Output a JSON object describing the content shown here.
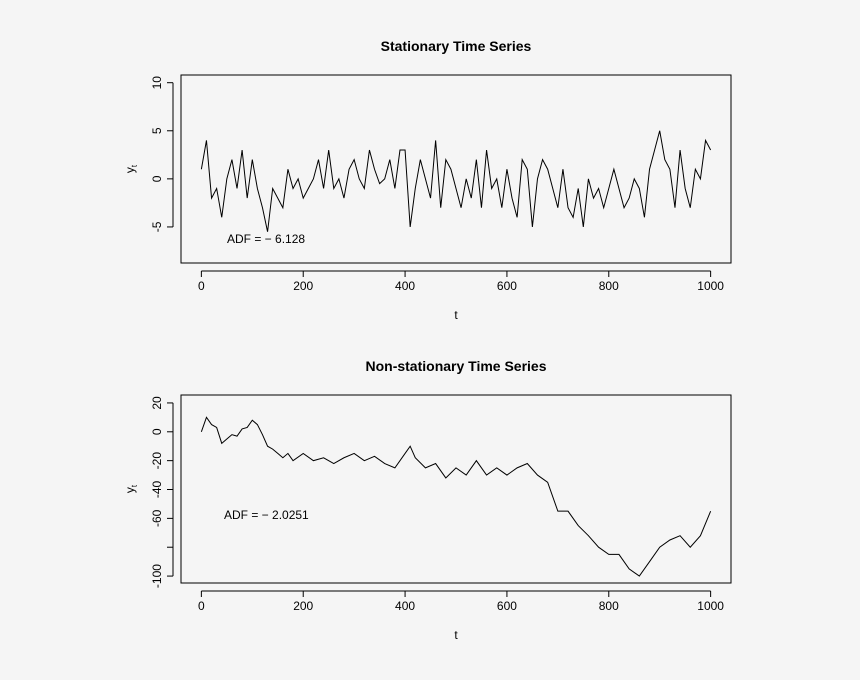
{
  "chart_data": [
    {
      "type": "line",
      "title": "Stationary Time Series",
      "xlabel": "t",
      "ylabel": "y",
      "ylabel_subscript": "t",
      "annotation": "ADF = − 6.128",
      "color": "#000000",
      "xlim": [
        -40,
        1040
      ],
      "ylim": [
        -8.75,
        10.8
      ],
      "xticks": [
        0,
        200,
        400,
        600,
        800,
        1000
      ],
      "yticks": [
        -5,
        0,
        5,
        10
      ],
      "x": [
        0,
        10,
        20,
        30,
        40,
        50,
        60,
        70,
        80,
        90,
        100,
        110,
        120,
        130,
        140,
        150,
        160,
        170,
        180,
        190,
        200,
        210,
        220,
        230,
        240,
        250,
        260,
        270,
        280,
        290,
        300,
        310,
        320,
        330,
        340,
        350,
        360,
        370,
        380,
        390,
        400,
        410,
        420,
        430,
        440,
        450,
        460,
        470,
        480,
        490,
        500,
        510,
        520,
        530,
        540,
        550,
        560,
        570,
        580,
        590,
        600,
        610,
        620,
        630,
        640,
        650,
        660,
        670,
        680,
        690,
        700,
        710,
        720,
        730,
        740,
        750,
        760,
        770,
        780,
        790,
        800,
        810,
        820,
        830,
        840,
        850,
        860,
        870,
        880,
        890,
        900,
        910,
        920,
        930,
        940,
        950,
        960,
        970,
        980,
        990,
        1000
      ],
      "values": [
        1,
        4,
        -2,
        -1,
        -4,
        0,
        2,
        -1,
        3,
        -2,
        2,
        -1,
        -3,
        -5.5,
        -1,
        -2,
        -3,
        1,
        -1,
        0,
        -2,
        -1,
        0,
        2,
        -1,
        3,
        -1,
        0,
        -2,
        1,
        2,
        0,
        -1,
        3,
        1,
        -0.5,
        0,
        2,
        -1,
        3,
        3,
        -5,
        -1,
        2,
        0,
        -2,
        4,
        -3,
        2,
        1,
        -1,
        -3,
        0,
        -2,
        2,
        -3,
        3,
        -1,
        0,
        -3,
        1,
        -2,
        -4,
        2,
        1,
        -5,
        0,
        2,
        1,
        -1,
        -3,
        1,
        -3,
        -4,
        -1,
        -5,
        0,
        -2,
        -1,
        -3,
        -1,
        1,
        -1,
        -3,
        -2,
        0,
        -1,
        -4,
        1,
        3,
        5,
        2,
        1,
        -3,
        3,
        -1,
        -3,
        1,
        0,
        4,
        3
      ]
    },
    {
      "type": "line",
      "title": "Non-stationary Time Series",
      "xlabel": "t",
      "ylabel": "y",
      "ylabel_subscript": "t",
      "annotation": "ADF = − 2.0251",
      "color": "#000000",
      "xlim": [
        -40,
        1040
      ],
      "ylim": [
        -104.8,
        25.5
      ],
      "xticks": [
        0,
        200,
        400,
        600,
        800,
        1000
      ],
      "yticks": [
        -100,
        {
          "value": -80,
          "label": null
        },
        -60,
        -40,
        -20,
        0,
        20
      ],
      "x": [
        0,
        10,
        20,
        30,
        40,
        50,
        60,
        70,
        80,
        90,
        100,
        110,
        120,
        130,
        140,
        150,
        160,
        170,
        180,
        200,
        220,
        240,
        260,
        280,
        300,
        320,
        340,
        360,
        380,
        400,
        410,
        420,
        440,
        460,
        480,
        500,
        520,
        540,
        560,
        580,
        600,
        620,
        640,
        660,
        680,
        700,
        720,
        740,
        760,
        780,
        800,
        820,
        840,
        860,
        880,
        900,
        920,
        940,
        960,
        980,
        1000
      ],
      "values": [
        0,
        10,
        5,
        3,
        -8,
        -5,
        -2,
        -3,
        2,
        3,
        8,
        5,
        -2,
        -10,
        -12,
        -15,
        -18,
        -15,
        -20,
        -15,
        -20,
        -18,
        -22,
        -18,
        -15,
        -20,
        -17,
        -22,
        -25,
        -15,
        -10,
        -18,
        -25,
        -22,
        -32,
        -25,
        -30,
        -20,
        -30,
        -25,
        -30,
        -25,
        -22,
        -30,
        -35,
        -55,
        -55,
        -65,
        -72,
        -80,
        -85,
        -85,
        -95,
        -100,
        -90,
        -80,
        -75,
        -72,
        -80,
        -72,
        -55
      ]
    }
  ]
}
